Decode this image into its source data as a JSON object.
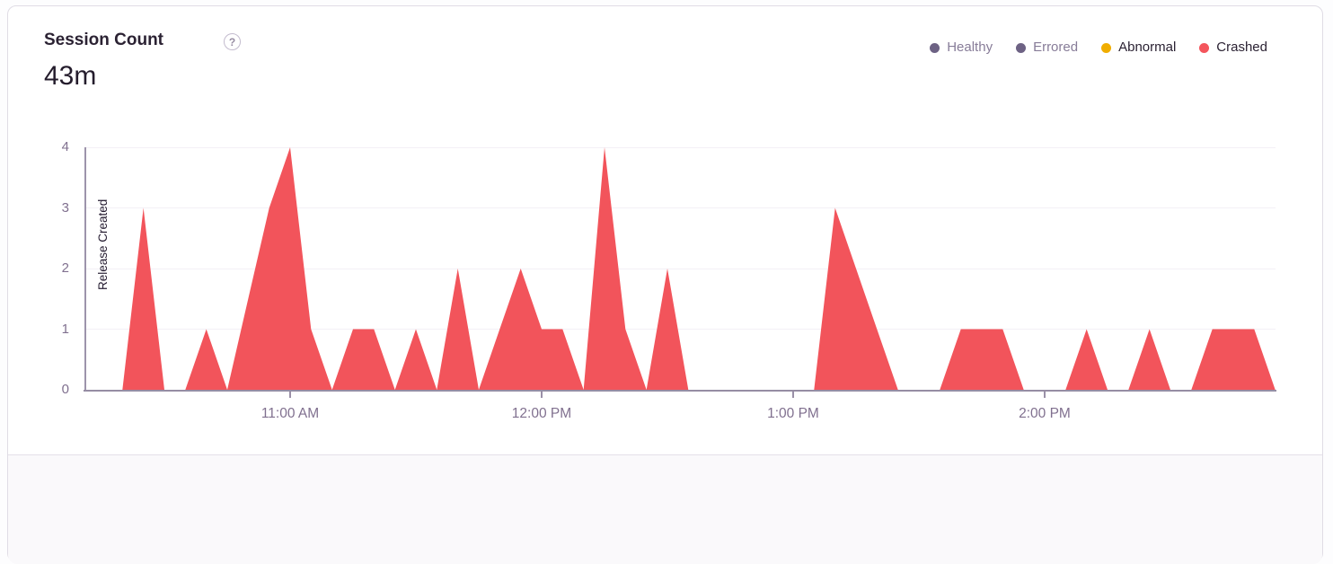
{
  "card": {
    "title": "Session Count",
    "help_glyph": "?",
    "total": "43m"
  },
  "legend": {
    "items": [
      {
        "label": "Healthy",
        "dot_color": "#6D6284",
        "text_color": "#877C98",
        "active": false
      },
      {
        "label": "Errored",
        "dot_color": "#6D6284",
        "text_color": "#877C98",
        "active": false
      },
      {
        "label": "Abnormal",
        "dot_color": "#F0AD00",
        "text_color": "#2B2233",
        "active": true
      },
      {
        "label": "Crashed",
        "dot_color": "#F4555C",
        "text_color": "#2B2233",
        "active": true
      }
    ]
  },
  "chart_data": {
    "type": "area",
    "title": "Session Count",
    "total_label": "43m",
    "ylim": [
      0,
      4
    ],
    "y_ticks": [
      0,
      1,
      2,
      3,
      4
    ],
    "x_ticks": [
      "11:00 AM",
      "12:00 PM",
      "1:00 PM",
      "2:00 PM"
    ],
    "x_window": [
      "10:11 AM",
      "2:55 PM"
    ],
    "grid": "horizontal",
    "legend_position": "top-right",
    "annotation": "Release Created",
    "series": [
      {
        "name": "Crashed",
        "color": "#F2545B",
        "points": [
          [
            "10:15 AM",
            0
          ],
          [
            "10:20 AM",
            0
          ],
          [
            "10:25 AM",
            3
          ],
          [
            "10:30 AM",
            0
          ],
          [
            "10:35 AM",
            0
          ],
          [
            "10:40 AM",
            1
          ],
          [
            "10:45 AM",
            0
          ],
          [
            "10:50 AM",
            1.5
          ],
          [
            "10:55 AM",
            3
          ],
          [
            "11:00 AM",
            4
          ],
          [
            "11:05 AM",
            1
          ],
          [
            "11:10 AM",
            0
          ],
          [
            "11:15 AM",
            1
          ],
          [
            "11:20 AM",
            1
          ],
          [
            "11:25 AM",
            0
          ],
          [
            "11:30 AM",
            1
          ],
          [
            "11:35 AM",
            0
          ],
          [
            "11:40 AM",
            2
          ],
          [
            "11:45 AM",
            0
          ],
          [
            "11:50 AM",
            1
          ],
          [
            "11:55 AM",
            2
          ],
          [
            "12:00 PM",
            1
          ],
          [
            "12:05 PM",
            1
          ],
          [
            "12:10 PM",
            0
          ],
          [
            "12:15 PM",
            4
          ],
          [
            "12:20 PM",
            1
          ],
          [
            "12:25 PM",
            0
          ],
          [
            "12:30 PM",
            2
          ],
          [
            "12:35 PM",
            0
          ],
          [
            "12:40 PM",
            0
          ],
          [
            "12:45 PM",
            0
          ],
          [
            "12:50 PM",
            0
          ],
          [
            "12:55 PM",
            0
          ],
          [
            "1:00 PM",
            0
          ],
          [
            "1:05 PM",
            0
          ],
          [
            "1:10 PM",
            3
          ],
          [
            "1:15 PM",
            2
          ],
          [
            "1:20 PM",
            1
          ],
          [
            "1:25 PM",
            0
          ],
          [
            "1:30 PM",
            0
          ],
          [
            "1:35 PM",
            0
          ],
          [
            "1:40 PM",
            1
          ],
          [
            "1:45 PM",
            1
          ],
          [
            "1:50 PM",
            1
          ],
          [
            "1:55 PM",
            0
          ],
          [
            "2:00 PM",
            0
          ],
          [
            "2:05 PM",
            0
          ],
          [
            "2:10 PM",
            1
          ],
          [
            "2:15 PM",
            0
          ],
          [
            "2:20 PM",
            0
          ],
          [
            "2:25 PM",
            1
          ],
          [
            "2:30 PM",
            0
          ],
          [
            "2:35 PM",
            0
          ],
          [
            "2:40 PM",
            1
          ],
          [
            "2:45 PM",
            1
          ],
          [
            "2:50 PM",
            1
          ],
          [
            "2:55 PM",
            0
          ]
        ]
      }
    ]
  }
}
